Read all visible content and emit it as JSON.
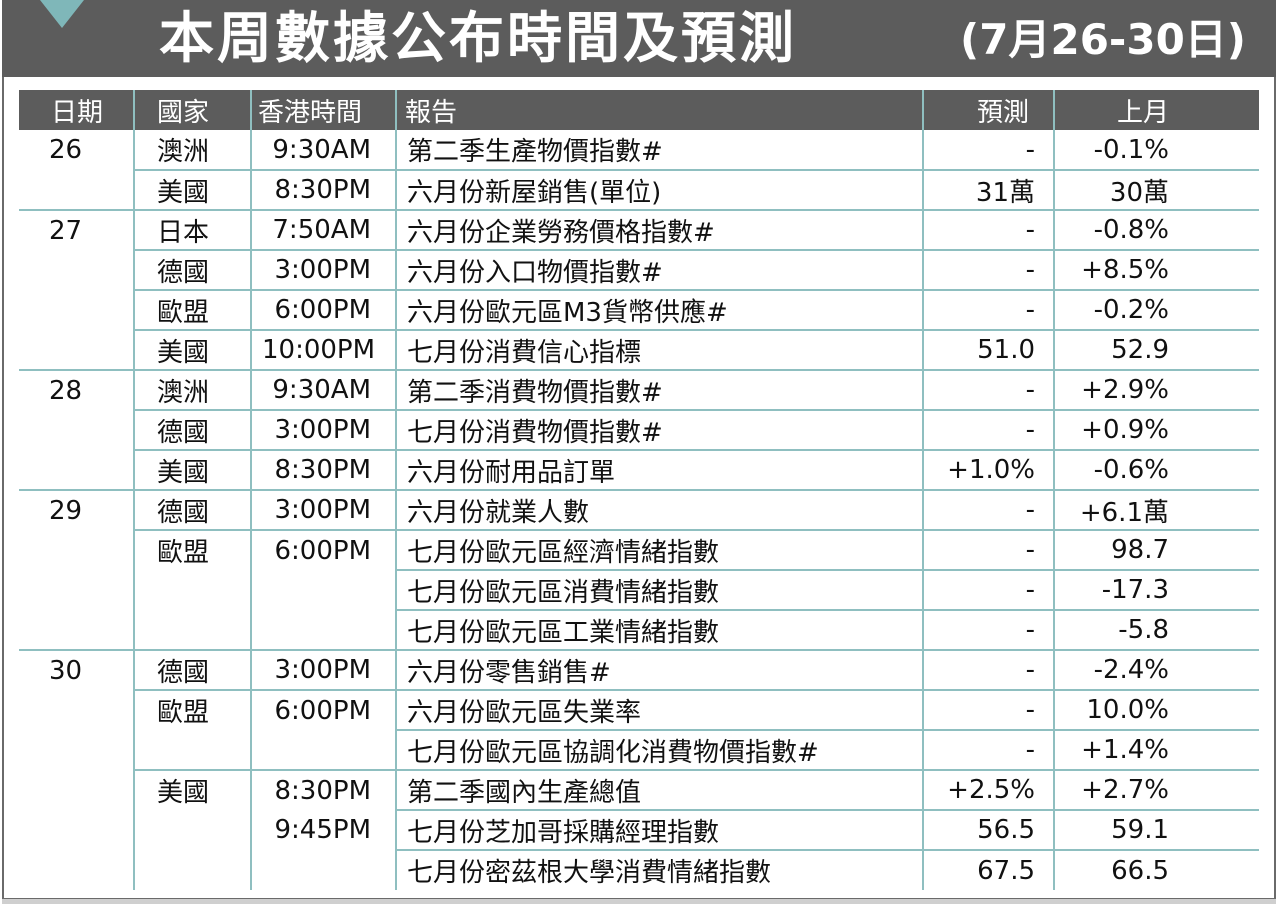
{
  "header": {
    "title": "本周數據公布時間及預測",
    "date_range": "(7月26-30日)"
  },
  "colors": {
    "bar": "#5c5c5c",
    "accent": "#8fbfc0"
  },
  "table": {
    "columns": [
      "日期",
      "國家",
      "香港時間",
      "報告",
      "預測",
      "上月"
    ],
    "rows": [
      {
        "date": "26",
        "country": "澳洲",
        "time": "9:30AM",
        "report": "第二季生產物價指數#",
        "forecast": "-",
        "last": "-0.1%"
      },
      {
        "date": "",
        "country": "美國",
        "time": "8:30PM",
        "report": "六月份新屋銷售(單位)",
        "forecast": "31萬",
        "last": "30萬"
      },
      {
        "date": "27",
        "country": "日本",
        "time": "7:50AM",
        "report": "六月份企業勞務價格指數#",
        "forecast": "-",
        "last": "-0.8%"
      },
      {
        "date": "",
        "country": "德國",
        "time": "3:00PM",
        "report": "六月份入口物價指數#",
        "forecast": "-",
        "last": "+8.5%"
      },
      {
        "date": "",
        "country": "歐盟",
        "time": "6:00PM",
        "report": "六月份歐元區M3貨幣供應#",
        "forecast": "-",
        "last": "-0.2%"
      },
      {
        "date": "",
        "country": "美國",
        "time": "10:00PM",
        "report": "七月份消費信心指標",
        "forecast": "51.0",
        "last": "52.9"
      },
      {
        "date": "28",
        "country": "澳洲",
        "time": "9:30AM",
        "report": "第二季消費物價指數#",
        "forecast": "-",
        "last": "+2.9%"
      },
      {
        "date": "",
        "country": "德國",
        "time": "3:00PM",
        "report": "七月份消費物價指數#",
        "forecast": "-",
        "last": "+0.9%"
      },
      {
        "date": "",
        "country": "美國",
        "time": "8:30PM",
        "report": "六月份耐用品訂單",
        "forecast": "+1.0%",
        "last": "-0.6%"
      },
      {
        "date": "29",
        "country": "德國",
        "time": "3:00PM",
        "report": "六月份就業人數",
        "forecast": "-",
        "last": "+6.1萬"
      },
      {
        "date": "",
        "country": "歐盟",
        "time": "6:00PM",
        "report": "七月份歐元區經濟情緒指數",
        "forecast": "-",
        "last": "98.7"
      },
      {
        "date": "",
        "country": "",
        "time": "",
        "report": "七月份歐元區消費情緒指數",
        "forecast": "-",
        "last": "-17.3"
      },
      {
        "date": "",
        "country": "",
        "time": "",
        "report": "七月份歐元區工業情緒指數",
        "forecast": "-",
        "last": "-5.8"
      },
      {
        "date": "30",
        "country": "德國",
        "time": "3:00PM",
        "report": "六月份零售銷售#",
        "forecast": "-",
        "last": "-2.4%"
      },
      {
        "date": "",
        "country": "歐盟",
        "time": "6:00PM",
        "report": "六月份歐元區失業率",
        "forecast": "-",
        "last": "10.0%"
      },
      {
        "date": "",
        "country": "",
        "time": "",
        "report": "七月份歐元區協調化消費物價指數#",
        "forecast": "-",
        "last": "+1.4%"
      },
      {
        "date": "",
        "country": "美國",
        "time": "8:30PM",
        "report": "第二季國內生產總值",
        "forecast": "+2.5%",
        "last": "+2.7%"
      },
      {
        "date": "",
        "country": "",
        "time": "9:45PM",
        "report": "七月份芝加哥採購經理指數",
        "forecast": "56.5",
        "last": "59.1"
      },
      {
        "date": "",
        "country": "",
        "time": "",
        "report": "七月份密茲根大學消費情緒指數",
        "forecast": "67.5",
        "last": "66.5"
      }
    ]
  }
}
